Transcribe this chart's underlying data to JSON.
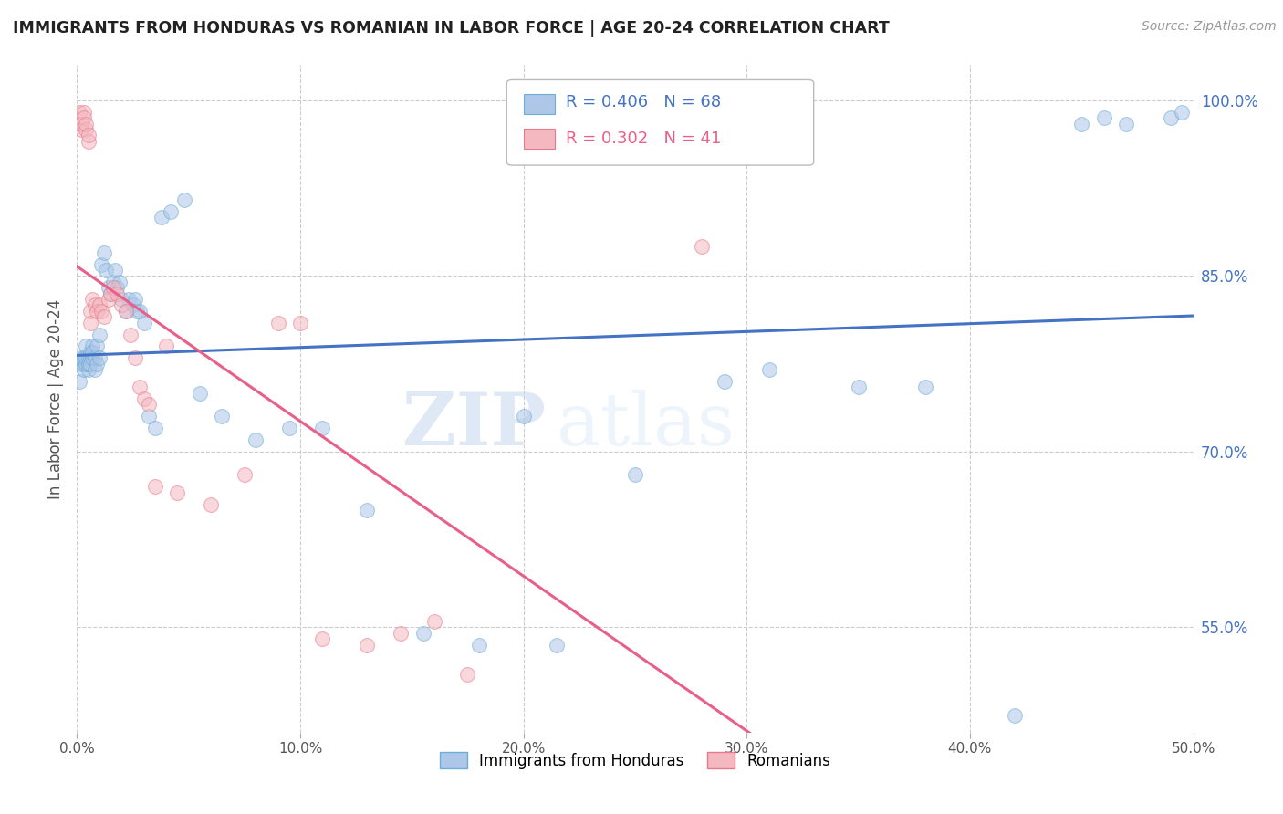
{
  "title": "IMMIGRANTS FROM HONDURAS VS ROMANIAN IN LABOR FORCE | AGE 20-24 CORRELATION CHART",
  "source": "Source: ZipAtlas.com",
  "ylabel": "In Labor Force | Age 20-24",
  "xlim": [
    0.0,
    0.5
  ],
  "ylim": [
    0.46,
    1.03
  ],
  "yticks": [
    0.55,
    0.7,
    0.85,
    1.0
  ],
  "ytick_labels": [
    "55.0%",
    "70.0%",
    "85.0%",
    "100.0%"
  ],
  "xticks": [
    0.0,
    0.1,
    0.2,
    0.3,
    0.4,
    0.5
  ],
  "xtick_labels": [
    "0.0%",
    "10.0%",
    "20.0%",
    "30.0%",
    "40.0%",
    "50.0%"
  ],
  "background_color": "#ffffff",
  "grid_color": "#cccccc",
  "honduras_color": "#aec6e8",
  "honduras_edge": "#6baed6",
  "romania_color": "#f4b8c1",
  "romania_edge": "#e87a8a",
  "blue_line_color": "#4472c4",
  "pink_line_color": "#e8608a",
  "honduras_R": 0.406,
  "honduras_N": 68,
  "romania_R": 0.302,
  "romania_N": 41,
  "legend_label_1": "Immigrants from Honduras",
  "legend_label_2": "Romanians",
  "watermark_zip": "ZIP",
  "watermark_atlas": "atlas",
  "honduras_x": [
    0.001,
    0.002,
    0.002,
    0.003,
    0.003,
    0.003,
    0.004,
    0.004,
    0.004,
    0.005,
    0.005,
    0.005,
    0.005,
    0.006,
    0.006,
    0.006,
    0.007,
    0.007,
    0.007,
    0.008,
    0.008,
    0.009,
    0.009,
    0.01,
    0.01,
    0.011,
    0.012,
    0.013,
    0.014,
    0.015,
    0.016,
    0.017,
    0.018,
    0.019,
    0.02,
    0.022,
    0.023,
    0.025,
    0.026,
    0.027,
    0.028,
    0.03,
    0.032,
    0.035,
    0.038,
    0.042,
    0.048,
    0.055,
    0.065,
    0.08,
    0.095,
    0.11,
    0.13,
    0.155,
    0.18,
    0.2,
    0.215,
    0.25,
    0.29,
    0.31,
    0.35,
    0.38,
    0.42,
    0.45,
    0.46,
    0.47,
    0.49,
    0.495
  ],
  "honduras_y": [
    0.76,
    0.775,
    0.78,
    0.77,
    0.775,
    0.78,
    0.775,
    0.78,
    0.79,
    0.77,
    0.775,
    0.78,
    0.775,
    0.78,
    0.775,
    0.785,
    0.78,
    0.79,
    0.785,
    0.77,
    0.78,
    0.79,
    0.775,
    0.8,
    0.78,
    0.86,
    0.87,
    0.855,
    0.84,
    0.835,
    0.845,
    0.855,
    0.84,
    0.845,
    0.83,
    0.82,
    0.83,
    0.825,
    0.83,
    0.82,
    0.82,
    0.81,
    0.73,
    0.72,
    0.9,
    0.905,
    0.915,
    0.75,
    0.73,
    0.71,
    0.72,
    0.72,
    0.65,
    0.545,
    0.535,
    0.73,
    0.535,
    0.68,
    0.76,
    0.77,
    0.755,
    0.755,
    0.475,
    0.98,
    0.985,
    0.98,
    0.985,
    0.99
  ],
  "romania_x": [
    0.001,
    0.002,
    0.002,
    0.003,
    0.003,
    0.004,
    0.004,
    0.005,
    0.005,
    0.006,
    0.006,
    0.007,
    0.008,
    0.009,
    0.01,
    0.011,
    0.012,
    0.014,
    0.015,
    0.016,
    0.018,
    0.02,
    0.022,
    0.024,
    0.026,
    0.028,
    0.03,
    0.032,
    0.035,
    0.04,
    0.045,
    0.06,
    0.075,
    0.09,
    0.1,
    0.11,
    0.13,
    0.145,
    0.16,
    0.175,
    0.28
  ],
  "romania_y": [
    0.99,
    0.975,
    0.98,
    0.99,
    0.985,
    0.975,
    0.98,
    0.965,
    0.97,
    0.82,
    0.81,
    0.83,
    0.825,
    0.82,
    0.825,
    0.82,
    0.815,
    0.83,
    0.835,
    0.84,
    0.835,
    0.825,
    0.82,
    0.8,
    0.78,
    0.755,
    0.745,
    0.74,
    0.67,
    0.79,
    0.665,
    0.655,
    0.68,
    0.81,
    0.81,
    0.54,
    0.535,
    0.545,
    0.555,
    0.51,
    0.875
  ],
  "marker_size": 130,
  "marker_alpha": 0.55
}
